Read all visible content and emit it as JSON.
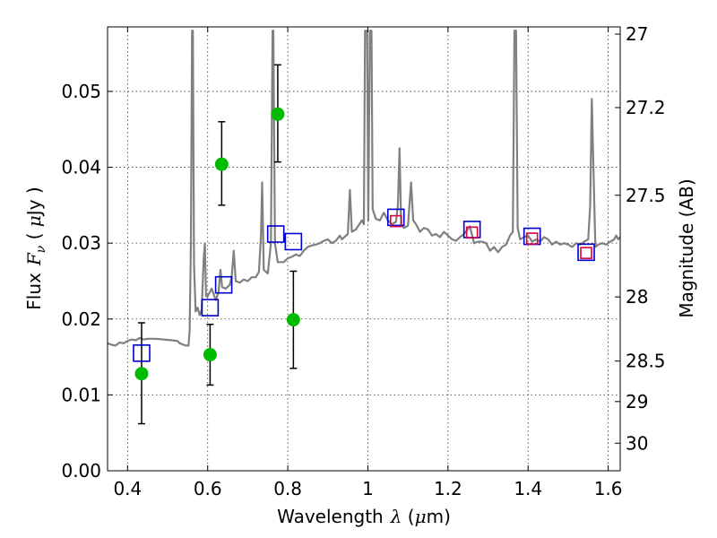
{
  "chart_data": {
    "type": "scatter",
    "xlabel": "Wavelength",
    "xlabel_symbol": "λ",
    "xlabel_unit_open": " (",
    "xlabel_unit_mu": "μ",
    "xlabel_unit_close": "m)",
    "ylabel": "Flux",
    "ylabel_symbol": "F",
    "ylabel_sub": "ν",
    "ylabel_unit_open": "  (  ",
    "ylabel_unit_mu": "μ",
    "ylabel_unit_close": "Jy  )",
    "y2label": "Magnitude (AB)",
    "xlim": [
      0.35,
      1.63
    ],
    "ylim": [
      0.0,
      0.0585
    ],
    "grid": true,
    "x_ticks": [
      {
        "value": 0.4,
        "label": "0.4"
      },
      {
        "value": 0.6,
        "label": "0.6"
      },
      {
        "value": 0.8,
        "label": "0.8"
      },
      {
        "value": 1.0,
        "label": "1"
      },
      {
        "value": 1.2,
        "label": "1.2"
      },
      {
        "value": 1.4,
        "label": "1.4"
      },
      {
        "value": 1.6,
        "label": "1.6"
      }
    ],
    "y_ticks": [
      {
        "value": 0.0,
        "label": "0.00"
      },
      {
        "value": 0.01,
        "label": "0.01"
      },
      {
        "value": 0.02,
        "label": "0.02"
      },
      {
        "value": 0.03,
        "label": "0.03"
      },
      {
        "value": 0.04,
        "label": "0.04"
      },
      {
        "value": 0.05,
        "label": "0.05"
      }
    ],
    "y2_ticks": [
      {
        "value": 27.0,
        "label": "27"
      },
      {
        "value": 27.2,
        "label": "27.2"
      },
      {
        "value": 27.5,
        "label": "27.5"
      },
      {
        "value": 28.0,
        "label": "28"
      },
      {
        "value": 28.5,
        "label": "28.5"
      },
      {
        "value": 29.0,
        "label": "29"
      },
      {
        "value": 30.0,
        "label": "30"
      }
    ],
    "colors": {
      "spectrum": "#808080",
      "photometry": "#00bb00",
      "model_blue": "#0000cc",
      "model_red": "#dd0044",
      "errorbar": "#000000"
    },
    "series": [
      {
        "kind": "spectrum",
        "points": [
          [
            0.35,
            0.0168
          ],
          [
            0.36,
            0.0166
          ],
          [
            0.37,
            0.0165
          ],
          [
            0.38,
            0.0169
          ],
          [
            0.39,
            0.0168
          ],
          [
            0.4,
            0.0171
          ],
          [
            0.41,
            0.0173
          ],
          [
            0.42,
            0.0172
          ],
          [
            0.43,
            0.0175
          ],
          [
            0.44,
            0.0173
          ],
          [
            0.45,
            0.0174
          ],
          [
            0.47,
            0.0174
          ],
          [
            0.49,
            0.0173
          ],
          [
            0.51,
            0.0172
          ],
          [
            0.525,
            0.0171
          ],
          [
            0.53,
            0.0168
          ],
          [
            0.545,
            0.0165
          ],
          [
            0.552,
            0.0165
          ],
          [
            0.555,
            0.0185
          ],
          [
            0.558,
            0.03
          ],
          [
            0.561,
            0.058
          ],
          [
            0.563,
            0.058
          ],
          [
            0.566,
            0.027
          ],
          [
            0.57,
            0.021
          ],
          [
            0.575,
            0.0215
          ],
          [
            0.58,
            0.0205
          ],
          [
            0.585,
            0.0212
          ],
          [
            0.59,
            0.028
          ],
          [
            0.593,
            0.03
          ],
          [
            0.596,
            0.023
          ],
          [
            0.6,
            0.023
          ],
          [
            0.61,
            0.024
          ],
          [
            0.62,
            0.0225
          ],
          [
            0.627,
            0.0235
          ],
          [
            0.632,
            0.0265
          ],
          [
            0.636,
            0.0242
          ],
          [
            0.645,
            0.024
          ],
          [
            0.655,
            0.0245
          ],
          [
            0.66,
            0.0255
          ],
          [
            0.665,
            0.029
          ],
          [
            0.67,
            0.025
          ],
          [
            0.68,
            0.0248
          ],
          [
            0.69,
            0.0252
          ],
          [
            0.7,
            0.025
          ],
          [
            0.71,
            0.0255
          ],
          [
            0.72,
            0.0255
          ],
          [
            0.728,
            0.0262
          ],
          [
            0.733,
            0.031
          ],
          [
            0.736,
            0.038
          ],
          [
            0.74,
            0.0265
          ],
          [
            0.75,
            0.026
          ],
          [
            0.758,
            0.03
          ],
          [
            0.762,
            0.058
          ],
          [
            0.764,
            0.058
          ],
          [
            0.768,
            0.03
          ],
          [
            0.775,
            0.0275
          ],
          [
            0.79,
            0.0275
          ],
          [
            0.8,
            0.028
          ],
          [
            0.81,
            0.0282
          ],
          [
            0.82,
            0.0285
          ],
          [
            0.83,
            0.0283
          ],
          [
            0.84,
            0.029
          ],
          [
            0.85,
            0.0295
          ],
          [
            0.86,
            0.0297
          ],
          [
            0.87,
            0.0298
          ],
          [
            0.88,
            0.03
          ],
          [
            0.89,
            0.0303
          ],
          [
            0.9,
            0.0305
          ],
          [
            0.91,
            0.03
          ],
          [
            0.92,
            0.0303
          ],
          [
            0.93,
            0.031
          ],
          [
            0.935,
            0.0305
          ],
          [
            0.95,
            0.0312
          ],
          [
            0.955,
            0.037
          ],
          [
            0.96,
            0.0315
          ],
          [
            0.97,
            0.0318
          ],
          [
            0.975,
            0.0322
          ],
          [
            0.985,
            0.033
          ],
          [
            0.99,
            0.0325
          ],
          [
            0.993,
            0.058
          ],
          [
            0.998,
            0.058
          ],
          [
            1.001,
            0.033
          ],
          [
            1.005,
            0.058
          ],
          [
            1.009,
            0.058
          ],
          [
            1.012,
            0.0345
          ],
          [
            1.02,
            0.0332
          ],
          [
            1.03,
            0.033
          ],
          [
            1.04,
            0.034
          ],
          [
            1.05,
            0.033
          ],
          [
            1.06,
            0.0325
          ],
          [
            1.07,
            0.0328
          ],
          [
            1.075,
            0.035
          ],
          [
            1.079,
            0.0425
          ],
          [
            1.083,
            0.0325
          ],
          [
            1.09,
            0.032
          ],
          [
            1.1,
            0.0323
          ],
          [
            1.108,
            0.038
          ],
          [
            1.113,
            0.033
          ],
          [
            1.12,
            0.0325
          ],
          [
            1.13,
            0.0315
          ],
          [
            1.14,
            0.032
          ],
          [
            1.15,
            0.0318
          ],
          [
            1.16,
            0.031
          ],
          [
            1.17,
            0.0312
          ],
          [
            1.18,
            0.0308
          ],
          [
            1.19,
            0.0315
          ],
          [
            1.2,
            0.031
          ],
          [
            1.21,
            0.0305
          ],
          [
            1.22,
            0.0303
          ],
          [
            1.23,
            0.0308
          ],
          [
            1.24,
            0.0312
          ],
          [
            1.255,
            0.0322
          ],
          [
            1.265,
            0.03
          ],
          [
            1.275,
            0.0302
          ],
          [
            1.285,
            0.0302
          ],
          [
            1.295,
            0.03
          ],
          [
            1.305,
            0.029
          ],
          [
            1.315,
            0.0295
          ],
          [
            1.325,
            0.0288
          ],
          [
            1.335,
            0.0295
          ],
          [
            1.345,
            0.0298
          ],
          [
            1.355,
            0.031
          ],
          [
            1.362,
            0.0315
          ],
          [
            1.366,
            0.058
          ],
          [
            1.37,
            0.058
          ],
          [
            1.374,
            0.032
          ],
          [
            1.38,
            0.0305
          ],
          [
            1.39,
            0.0308
          ],
          [
            1.4,
            0.031
          ],
          [
            1.41,
            0.0302
          ],
          [
            1.42,
            0.0305
          ],
          [
            1.43,
            0.0302
          ],
          [
            1.44,
            0.0308
          ],
          [
            1.45,
            0.0305
          ],
          [
            1.46,
            0.0298
          ],
          [
            1.47,
            0.0302
          ],
          [
            1.48,
            0.0298
          ],
          [
            1.49,
            0.03
          ],
          [
            1.5,
            0.0298
          ],
          [
            1.51,
            0.0295
          ],
          [
            1.52,
            0.03
          ],
          [
            1.53,
            0.0298
          ],
          [
            1.54,
            0.0302
          ],
          [
            1.55,
            0.0305
          ],
          [
            1.555,
            0.035
          ],
          [
            1.559,
            0.049
          ],
          [
            1.563,
            0.04
          ],
          [
            1.568,
            0.0295
          ],
          [
            1.575,
            0.0298
          ],
          [
            1.585,
            0.03
          ],
          [
            1.595,
            0.0298
          ],
          [
            1.605,
            0.0302
          ],
          [
            1.615,
            0.0305
          ],
          [
            1.62,
            0.031
          ],
          [
            1.625,
            0.0305
          ],
          [
            1.63,
            0.0308
          ]
        ]
      },
      {
        "kind": "photometry",
        "points": [
          {
            "x": 0.435,
            "y": 0.0128,
            "lo": 0.0062,
            "hi": 0.0195
          },
          {
            "x": 0.606,
            "y": 0.0153,
            "lo": 0.0113,
            "hi": 0.0193
          },
          {
            "x": 0.635,
            "y": 0.0404,
            "lo": 0.035,
            "hi": 0.046
          },
          {
            "x": 0.775,
            "y": 0.047,
            "lo": 0.0407,
            "hi": 0.0535
          },
          {
            "x": 0.814,
            "y": 0.0199,
            "lo": 0.0135,
            "hi": 0.0263
          }
        ]
      },
      {
        "kind": "model_blue",
        "points": [
          {
            "x": 0.435,
            "y": 0.0155
          },
          {
            "x": 0.606,
            "y": 0.0215
          },
          {
            "x": 0.64,
            "y": 0.0245
          },
          {
            "x": 0.77,
            "y": 0.0312
          },
          {
            "x": 0.814,
            "y": 0.0302
          },
          {
            "x": 1.07,
            "y": 0.0334
          },
          {
            "x": 1.26,
            "y": 0.0318
          },
          {
            "x": 1.41,
            "y": 0.0309
          },
          {
            "x": 1.545,
            "y": 0.0288
          }
        ]
      },
      {
        "kind": "model_red",
        "points": [
          {
            "x": 1.07,
            "y": 0.0329
          },
          {
            "x": 1.26,
            "y": 0.0314
          },
          {
            "x": 1.41,
            "y": 0.0306
          },
          {
            "x": 1.545,
            "y": 0.0287
          }
        ]
      }
    ]
  }
}
